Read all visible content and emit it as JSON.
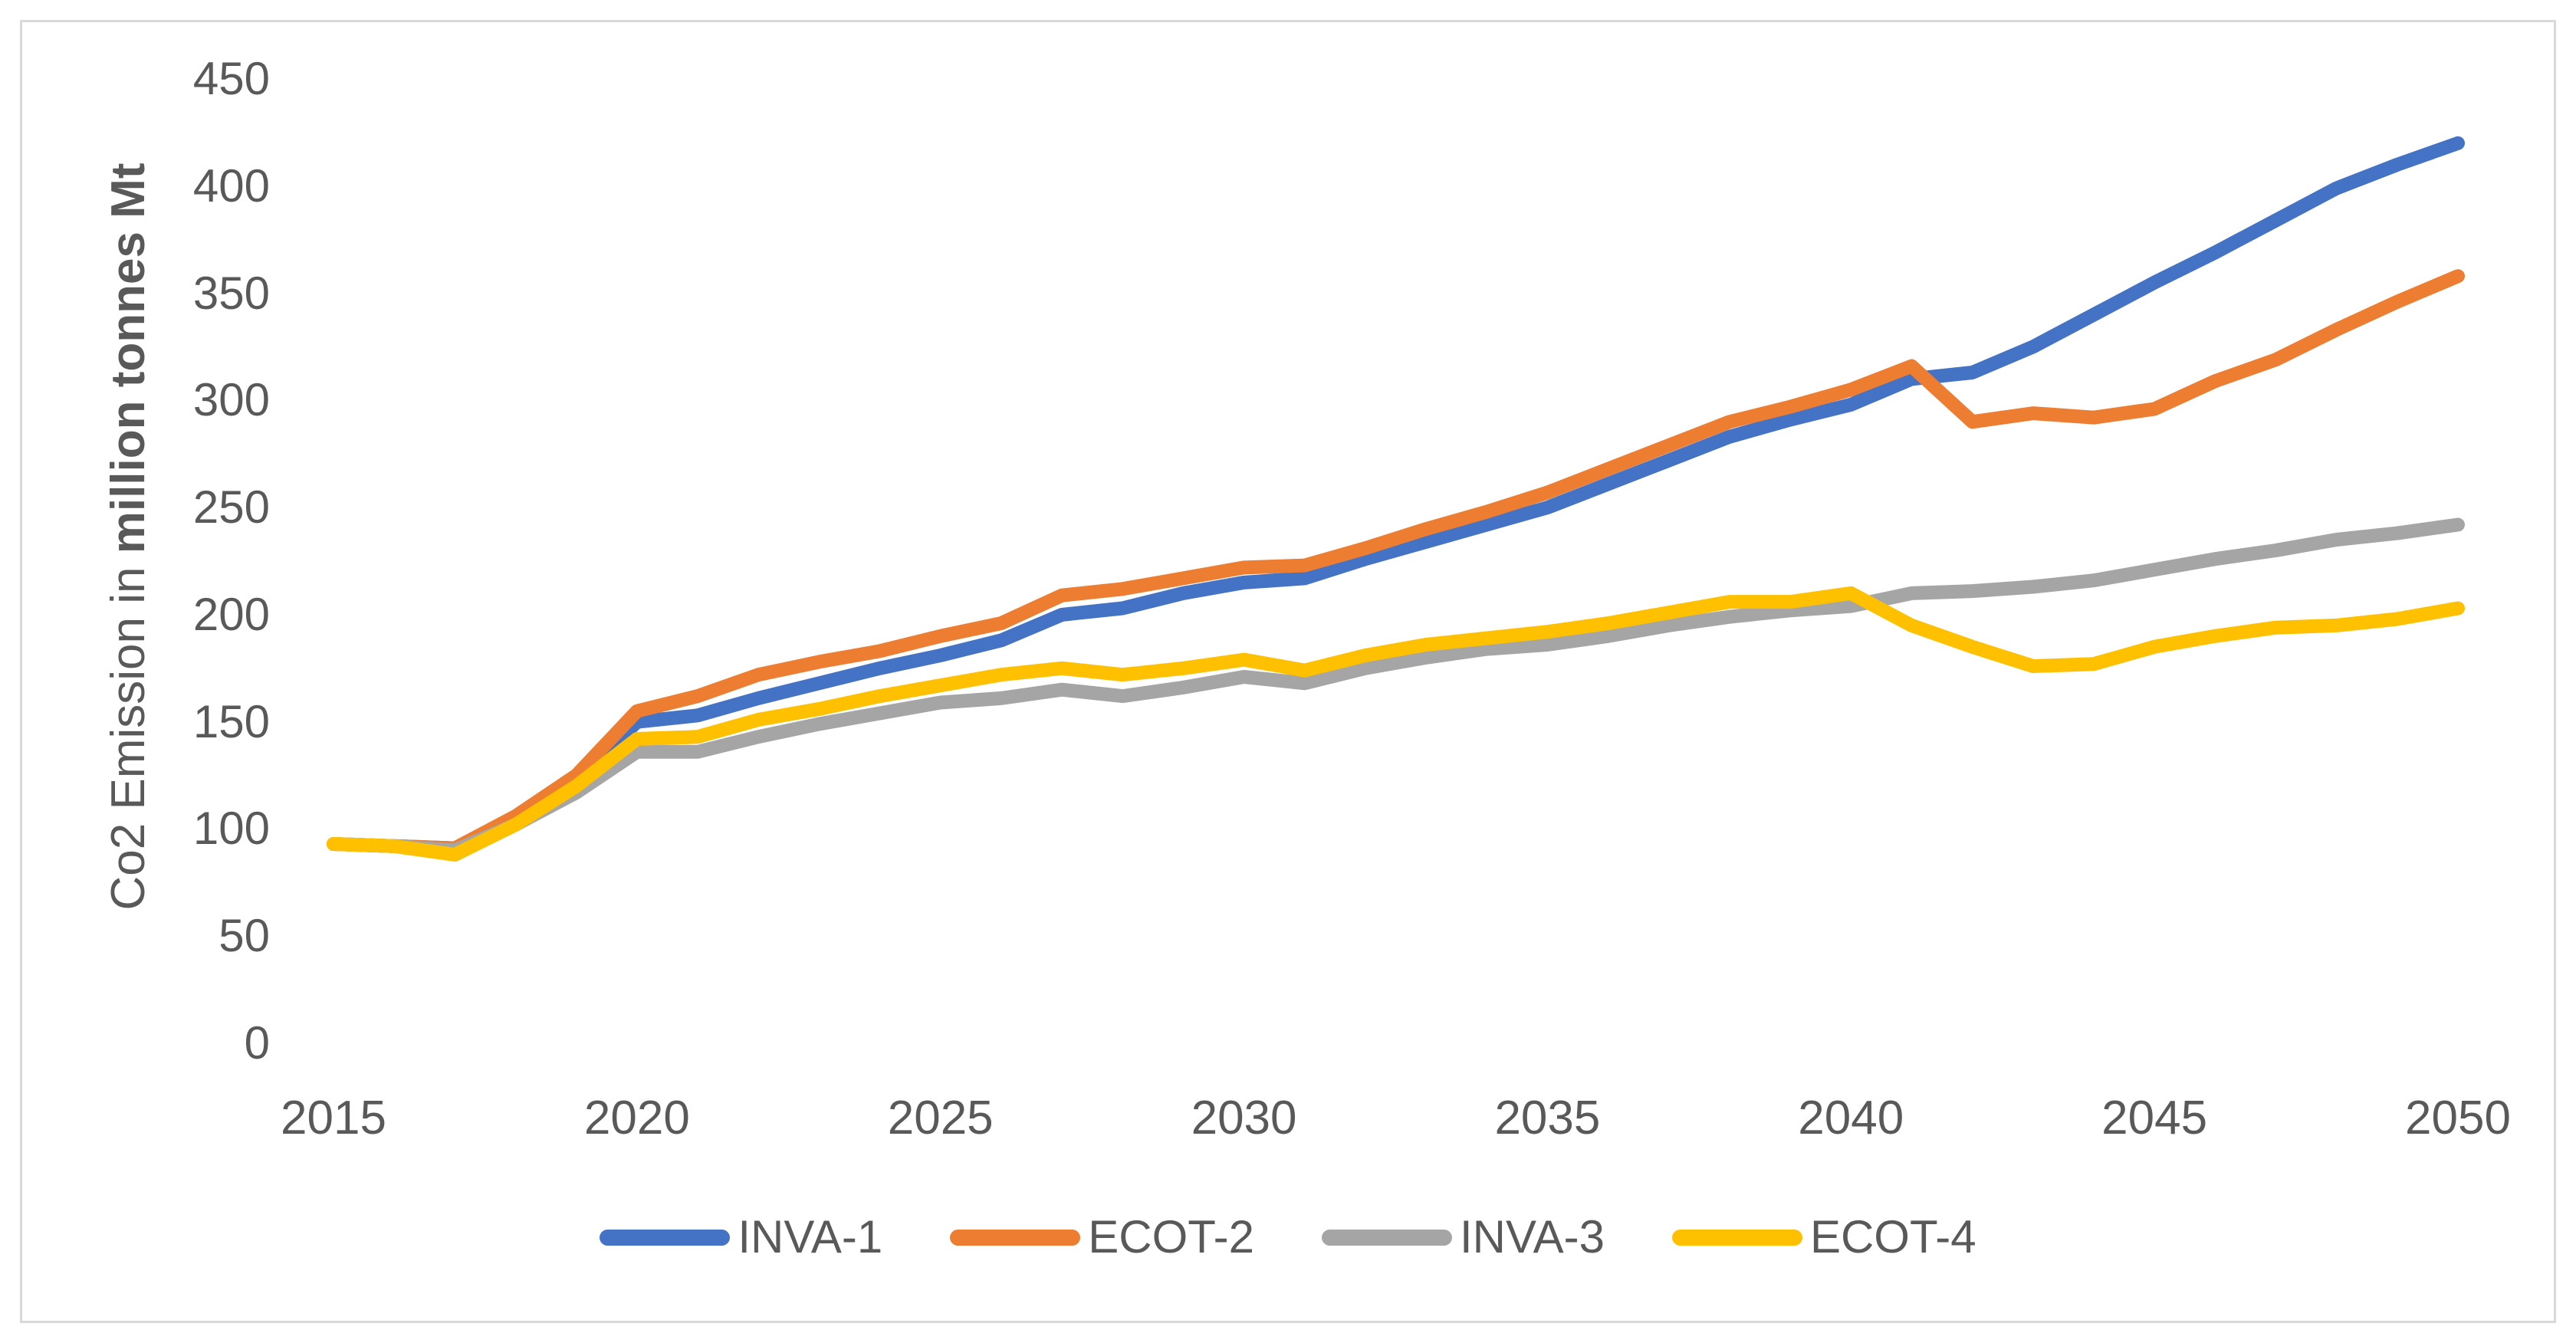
{
  "figure": {
    "background": "#FFFFFF",
    "border_color": "#D9D9D9",
    "text_color": "#595959"
  },
  "y_axis": {
    "title_regular": "Co2 Emission in ",
    "title_bold": "million tonnes Mt",
    "tick_labels": [
      "0",
      "50",
      "100",
      "150",
      "200",
      "250",
      "300",
      "350",
      "400",
      "450"
    ]
  },
  "x_axis": {
    "tick_labels": [
      "2015",
      "2020",
      "2025",
      "2030",
      "2035",
      "2040",
      "2045",
      "2050"
    ]
  },
  "legend": {
    "items": [
      {
        "label": "INVA-1",
        "color": "#4472C4"
      },
      {
        "label": "ECOT-2",
        "color": "#ED7D31"
      },
      {
        "label": "INVA-3",
        "color": "#A5A5A5"
      },
      {
        "label": "ECOT-4",
        "color": "#FFC000"
      }
    ]
  },
  "chart_data": {
    "type": "line",
    "title": "",
    "xlabel": "",
    "ylabel": "Co2 Emission in million tonnes Mt",
    "ylim": [
      0,
      450
    ],
    "xlim": [
      2015,
      2050
    ],
    "y_tick_step": 50,
    "x_tick_step": 5,
    "grid": false,
    "axis_lines": false,
    "legend_position": "bottom",
    "x": [
      2015,
      2016,
      2017,
      2018,
      2019,
      2020,
      2021,
      2022,
      2023,
      2024,
      2025,
      2026,
      2027,
      2028,
      2029,
      2030,
      2031,
      2032,
      2033,
      2034,
      2035,
      2036,
      2037,
      2038,
      2039,
      2040,
      2041,
      2042,
      2043,
      2044,
      2045,
      2046,
      2047,
      2048,
      2049,
      2050
    ],
    "series": [
      {
        "name": "INVA-1",
        "color": "#4472C4",
        "values": [
          93,
          92,
          91,
          104,
          123,
          150,
          153,
          161,
          168,
          175,
          181,
          188,
          200,
          203,
          210,
          215,
          217,
          226,
          234,
          242,
          250,
          261,
          272,
          283,
          291,
          298,
          310,
          313,
          325,
          340,
          355,
          369,
          384,
          399,
          410,
          420
        ]
      },
      {
        "name": "ECOT-2",
        "color": "#ED7D31",
        "values": [
          93,
          92,
          91,
          106,
          125,
          155,
          162,
          172,
          178,
          183,
          190,
          196,
          209,
          212,
          217,
          222,
          223,
          231,
          240,
          248,
          257,
          268,
          279,
          290,
          297,
          305,
          316,
          290,
          294,
          292,
          296,
          309,
          319,
          333,
          346,
          358
        ]
      },
      {
        "name": "INVA-3",
        "color": "#A5A5A5",
        "values": [
          93,
          92,
          90,
          102,
          117,
          136,
          136,
          143,
          149,
          154,
          159,
          161,
          165,
          162,
          166,
          171,
          168,
          175,
          180,
          184,
          186,
          190,
          195,
          199,
          202,
          204,
          210,
          211,
          213,
          216,
          221,
          226,
          230,
          235,
          238,
          242
        ]
      },
      {
        "name": "ECOT-4",
        "color": "#FFC000",
        "values": [
          93,
          92,
          88,
          102,
          120,
          142,
          143,
          151,
          156,
          162,
          167,
          172,
          175,
          172,
          175,
          179,
          174,
          181,
          186,
          189,
          192,
          196,
          201,
          206,
          206,
          210,
          195,
          185,
          176,
          177,
          185,
          190,
          194,
          195,
          198,
          203
        ]
      }
    ]
  }
}
